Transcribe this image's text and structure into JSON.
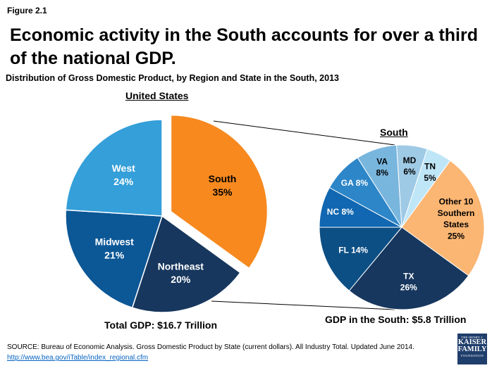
{
  "figure_label": "Figure 2.1",
  "headline": "Economic activity in the South accounts for over a third of the national GDP.",
  "logo": {
    "line1": "THE HENRY J.",
    "line2": "KAISER",
    "line3": "FAMILY",
    "line4": "FOUNDATION"
  },
  "source": {
    "text": "SOURCE: Bureau of Economic Analysis. Gross Domestic Product by State (current dollars). All Industry Total. Updated June 2014.",
    "link": "http://www.bea.gov/iTable/index_regional.cfm"
  },
  "chart_data": {
    "type": "pie",
    "title": "Distribution of Gross Domestic Product, by Region and State in the South, 2013",
    "charts": [
      {
        "id": "us",
        "title": "United States",
        "total_label": "Total GDP: $16.7 Trillion",
        "slices": [
          {
            "label": "South",
            "value": 35,
            "value_label": "35%",
            "color": "#f7891f",
            "exploded": true
          },
          {
            "label": "Northeast",
            "value": 20,
            "value_label": "20%",
            "color": "#17375e"
          },
          {
            "label": "Midwest",
            "value": 21,
            "value_label": "21%",
            "color": "#0c5796"
          },
          {
            "label": "West",
            "value": 24,
            "value_label": "24%",
            "color": "#349fd9"
          }
        ]
      },
      {
        "id": "south",
        "title": "South",
        "total_label": "GDP in the South: $5.8 Trillion",
        "slices": [
          {
            "label": "TN",
            "value": 5,
            "value_label": "5%",
            "color": "#bfe6f7"
          },
          {
            "label": "Other 10 Southern States",
            "value": 25,
            "value_label": "25%",
            "color": "#fbb673"
          },
          {
            "label": "TX",
            "value": 26,
            "value_label": "26%",
            "color": "#17375e"
          },
          {
            "label": "FL",
            "value": 14,
            "value_label": "14%",
            "color": "#0c4f85"
          },
          {
            "label": "NC",
            "value": 8,
            "value_label": "8%",
            "color": "#1167b1"
          },
          {
            "label": "GA",
            "value": 8,
            "value_label": "8%",
            "color": "#2d86c8"
          },
          {
            "label": "VA",
            "value": 8,
            "value_label": "8%",
            "color": "#79b6de"
          },
          {
            "label": "MD",
            "value": 6,
            "value_label": "6%",
            "color": "#9fcae6"
          }
        ]
      }
    ]
  }
}
